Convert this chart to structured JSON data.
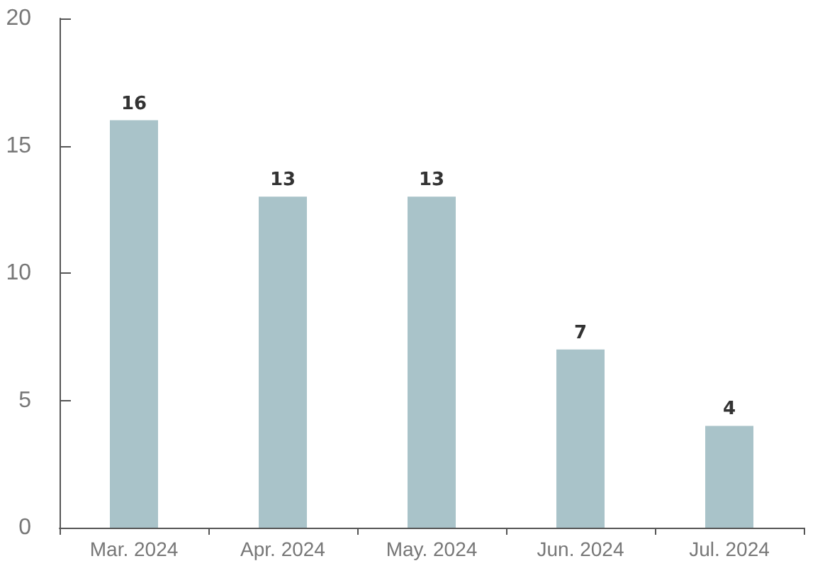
{
  "chart_data": {
    "type": "bar",
    "categories": [
      "Mar. 2024",
      "Apr. 2024",
      "May. 2024",
      "Jun. 2024",
      "Jul. 2024"
    ],
    "values": [
      16,
      13,
      13,
      7,
      4
    ],
    "color": "#a9c3c9",
    "ylim": [
      0,
      20
    ],
    "yticks": [
      0,
      5,
      10,
      15,
      20
    ],
    "grid": false,
    "data_labels": true
  }
}
